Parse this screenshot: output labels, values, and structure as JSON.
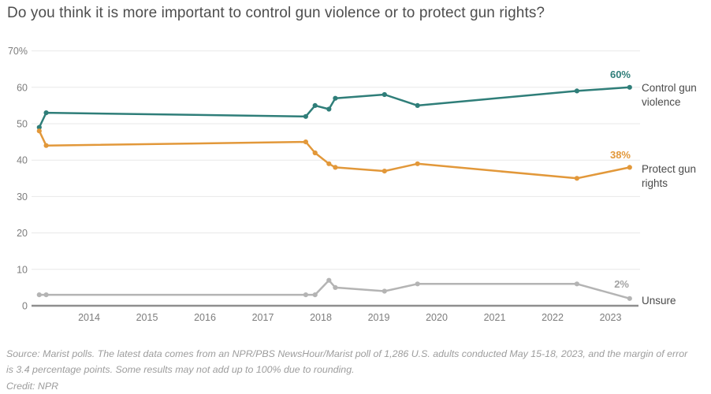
{
  "chart_data": {
    "type": "line",
    "title": "Do you think it is more important to control gun violence or to protect gun rights?",
    "x": [
      2013.14,
      2013.26,
      2017.74,
      2017.9,
      2018.14,
      2018.25,
      2019.1,
      2019.67,
      2022.42,
      2023.33
    ],
    "series": [
      {
        "name": "Control gun violence",
        "color": "#2f7e79",
        "values": [
          49,
          53,
          52,
          55,
          54,
          57,
          58,
          55,
          59,
          60
        ],
        "end_label": "60%"
      },
      {
        "name": "Protect gun rights",
        "color": "#e2983a",
        "values": [
          48,
          44,
          45,
          42,
          39,
          38,
          37,
          39,
          35,
          38
        ],
        "end_label": "38%"
      },
      {
        "name": "Unsure",
        "color": "#b4b4b4",
        "values": [
          3,
          3,
          3,
          3,
          7,
          5,
          4,
          6,
          6,
          2
        ],
        "end_label": "2%"
      }
    ],
    "y_ticks": [
      {
        "v": 70,
        "label": "70%"
      },
      {
        "v": 60,
        "label": "60"
      },
      {
        "v": 50,
        "label": "50"
      },
      {
        "v": 40,
        "label": "40"
      },
      {
        "v": 30,
        "label": "30"
      },
      {
        "v": 20,
        "label": "20"
      },
      {
        "v": 10,
        "label": "10"
      },
      {
        "v": 0,
        "label": "0"
      }
    ],
    "x_ticks": [
      "2014",
      "2015",
      "2016",
      "2017",
      "2018",
      "2019",
      "2020",
      "2021",
      "2022",
      "2023"
    ],
    "ylim": [
      0,
      72
    ],
    "xlabel": "",
    "ylabel": "",
    "grid": true,
    "legend_position": "right"
  },
  "labels": {
    "control_value": "60%",
    "rights_value": "38%",
    "unsure_value": "2%",
    "control_name": "Control gun violence",
    "rights_name": "Protect gun rights",
    "unsure_name": "Unsure"
  },
  "source": "Source: Marist polls. The latest data comes from an NPR/PBS NewsHour/Marist poll of 1,286 U.S. adults conducted May 15-18, 2023, and the margin of error is 3.4 percentage points. Some results may not add up to 100% due to rounding.",
  "credit": "Credit: NPR",
  "colors": {
    "control": "#2f7e79",
    "rights": "#e2983a",
    "unsure": "#b4b4b4",
    "grid": "#e8e8e8",
    "baseline": "#8f8f8f",
    "tick_text": "#7d7d7d",
    "title_text": "#4d4d4d"
  }
}
